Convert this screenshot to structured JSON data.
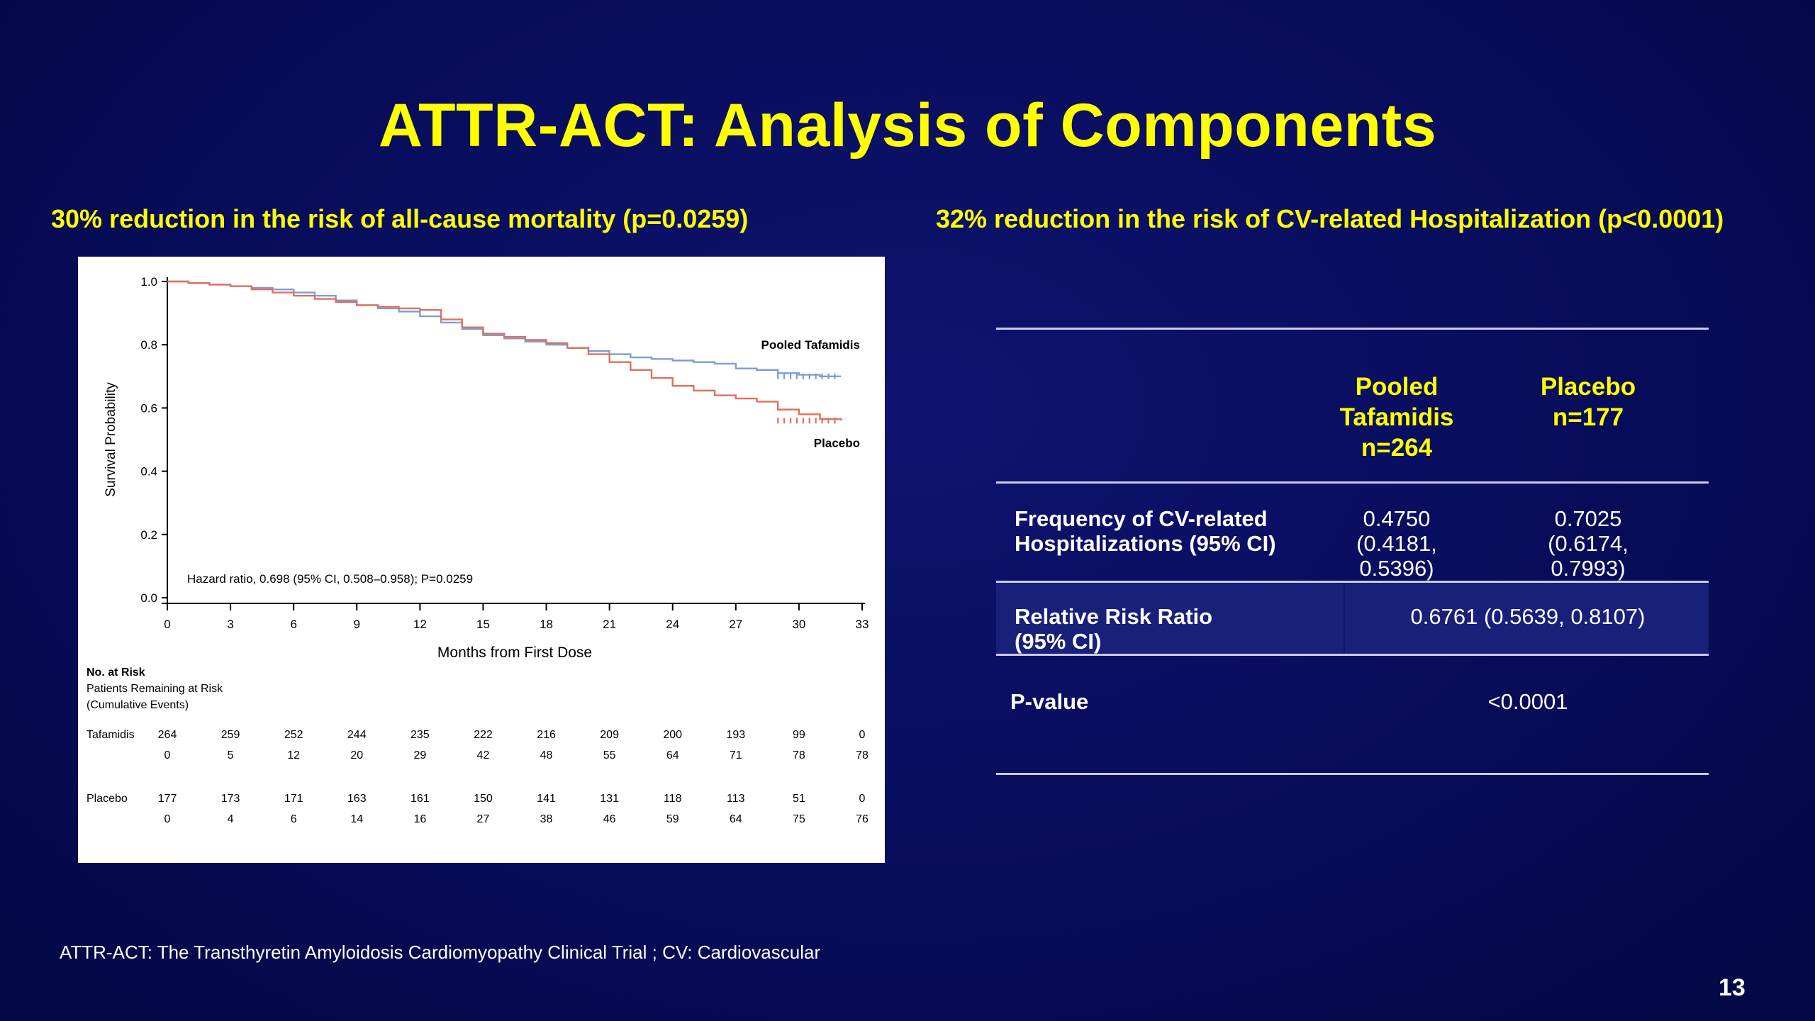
{
  "slide": {
    "title": "ATTR-ACT:  Analysis of Components",
    "subtitle_left": "30% reduction in the risk of all-cause mortality (p=0.0259)",
    "subtitle_right": "32% reduction in the risk of CV-related Hospitalization  (p<0.0001)",
    "footnote": "ATTR-ACT: The Transthyretin Amyloidosis Cardiomyopathy Clinical Trial  ; CV: Cardiovascular",
    "page_number": "13"
  },
  "chart_data": {
    "type": "line",
    "xlabel": "Months from First Dose",
    "ylabel": "Survival Probability",
    "xlim": [
      0,
      33
    ],
    "ylim": [
      0,
      1.0
    ],
    "x_ticks": [
      "0",
      "3",
      "6",
      "9",
      "12",
      "15",
      "18",
      "21",
      "24",
      "27",
      "30",
      "33"
    ],
    "y_ticks": [
      "0.0",
      "0.2",
      "0.4",
      "0.6",
      "0.8",
      "1.0"
    ],
    "annotation": "Hazard ratio, 0.698 (95% CI, 0.508–0.958); P=0.0259",
    "series": [
      {
        "name": "Pooled Tafamidis",
        "color": "#7a9fd6",
        "x": [
          0,
          1,
          2,
          3,
          4,
          5,
          6,
          7,
          8,
          9,
          10,
          11,
          12,
          13,
          14,
          15,
          16,
          17,
          18,
          19,
          20,
          21,
          22,
          23,
          24,
          25,
          26,
          27,
          28,
          29,
          30,
          31,
          32
        ],
        "y": [
          1.0,
          0.995,
          0.99,
          0.985,
          0.98,
          0.975,
          0.965,
          0.955,
          0.94,
          0.925,
          0.915,
          0.905,
          0.89,
          0.87,
          0.85,
          0.83,
          0.82,
          0.81,
          0.8,
          0.79,
          0.78,
          0.77,
          0.76,
          0.755,
          0.75,
          0.745,
          0.74,
          0.725,
          0.72,
          0.71,
          0.705,
          0.7,
          0.7
        ]
      },
      {
        "name": "Placebo",
        "color": "#e07060",
        "x": [
          0,
          1,
          2,
          3,
          4,
          5,
          6,
          7,
          8,
          9,
          10,
          11,
          12,
          13,
          14,
          15,
          16,
          17,
          18,
          19,
          20,
          21,
          22,
          23,
          24,
          25,
          26,
          27,
          28,
          29,
          30,
          31,
          32
        ],
        "y": [
          1.0,
          0.995,
          0.99,
          0.985,
          0.975,
          0.965,
          0.955,
          0.945,
          0.935,
          0.925,
          0.92,
          0.915,
          0.91,
          0.88,
          0.855,
          0.835,
          0.825,
          0.815,
          0.805,
          0.79,
          0.77,
          0.745,
          0.72,
          0.695,
          0.67,
          0.655,
          0.64,
          0.63,
          0.62,
          0.595,
          0.58,
          0.565,
          0.56
        ]
      }
    ],
    "at_risk": {
      "header": "No. at Risk",
      "subheader_1": "Patients Remaining at Risk",
      "subheader_2": "(Cumulative Events)",
      "groups": [
        {
          "label": "Tafamidis",
          "remaining": [
            "264",
            "259",
            "252",
            "244",
            "235",
            "222",
            "216",
            "209",
            "200",
            "193",
            "99",
            "0"
          ],
          "events": [
            "0",
            "5",
            "12",
            "20",
            "29",
            "42",
            "48",
            "55",
            "64",
            "71",
            "78",
            "78"
          ]
        },
        {
          "label": "Placebo",
          "remaining": [
            "177",
            "173",
            "171",
            "163",
            "161",
            "150",
            "141",
            "131",
            "118",
            "113",
            "51",
            "0"
          ],
          "events": [
            "0",
            "4",
            "6",
            "14",
            "16",
            "27",
            "38",
            "46",
            "59",
            "64",
            "75",
            "76"
          ]
        }
      ]
    }
  },
  "table": {
    "col1_line1": "Pooled",
    "col1_line2": "Tafamidis",
    "col1_line3": "n=264",
    "col2_line1": "Placebo",
    "col2_line2": "n=177",
    "row1_label_line1": "Frequency of CV-related",
    "row1_label_line2": "Hospitalizations (95% CI)",
    "row1_v1_line1": "0.4750",
    "row1_v1_line2": "(0.4181,",
    "row1_v1_line3": "0.5396)",
    "row1_v2_line1": "0.7025",
    "row1_v2_line2": "(0.6174,",
    "row1_v2_line3": "0.7993)",
    "row2_label_line1": "Relative Risk Ratio",
    "row2_label_line2": "(95% CI)",
    "row2_value": "0.6761 (0.5639, 0.8107)",
    "row3_label": "P-value",
    "row3_value": "<0.0001"
  }
}
